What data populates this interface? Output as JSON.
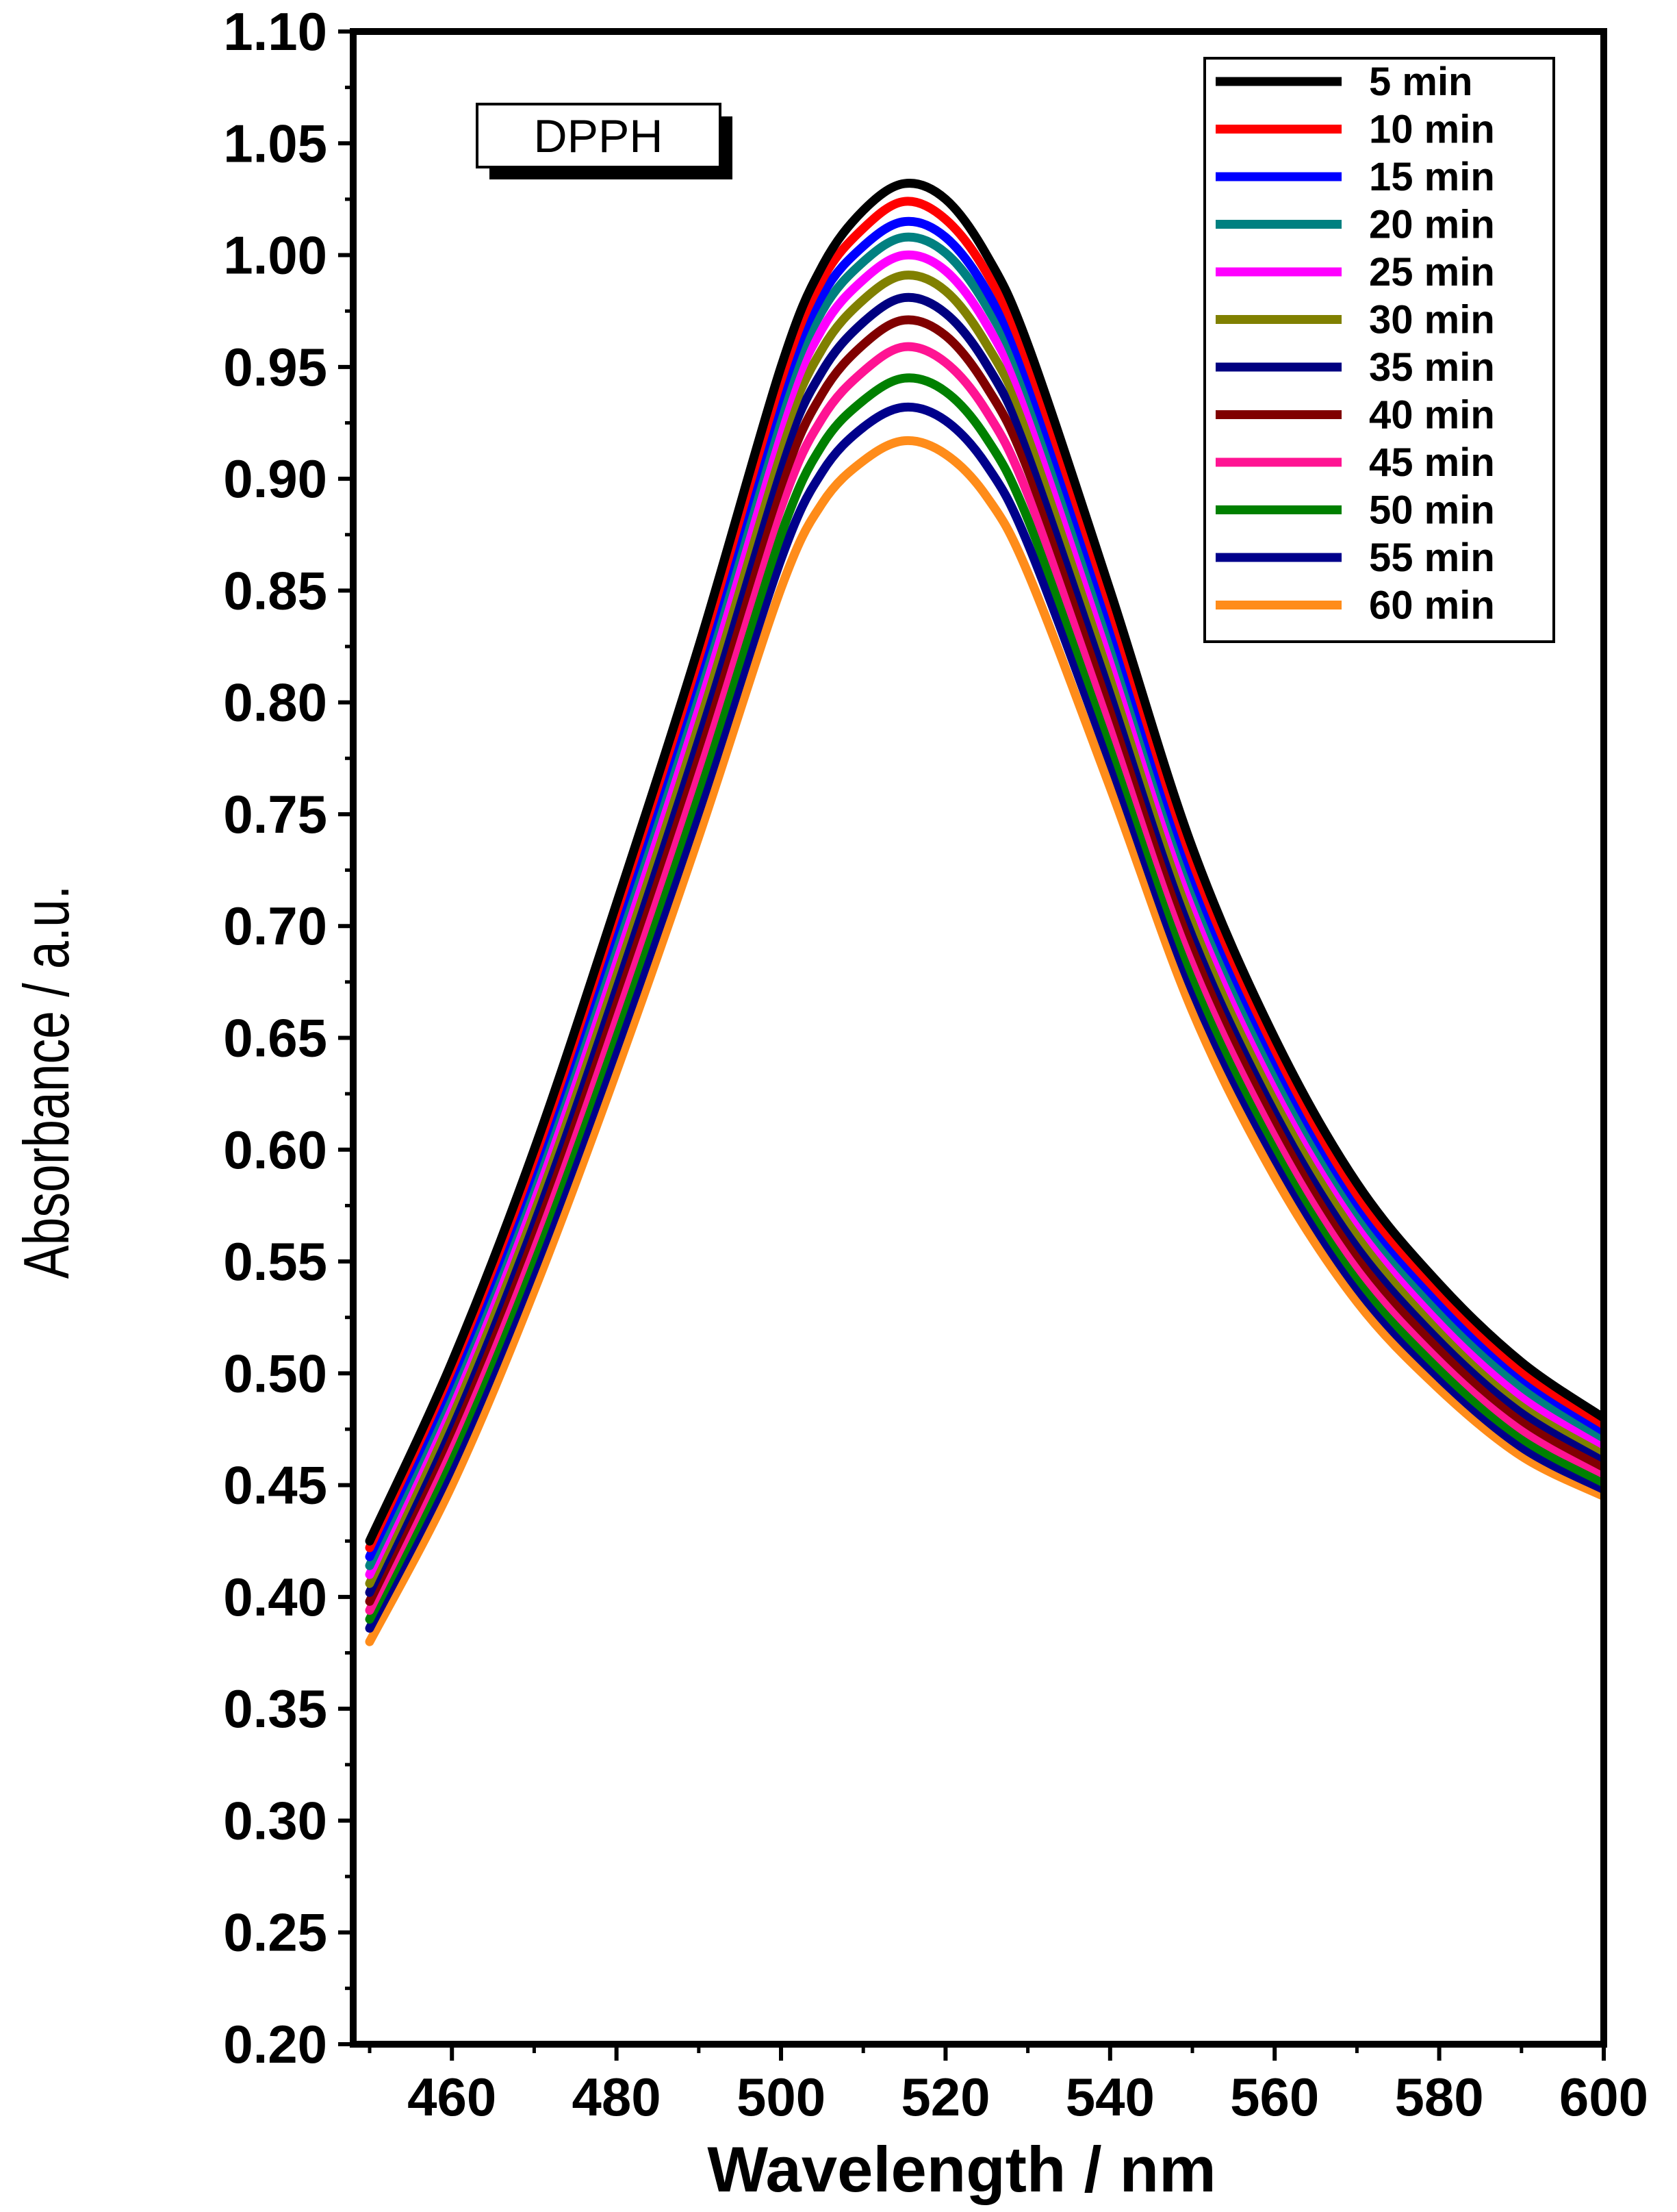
{
  "chart_data": {
    "type": "line",
    "title": "",
    "annotation": "DPPH",
    "xlabel": "Wavelength / nm",
    "ylabel": "Absorbance / a.u.",
    "xlim": [
      448,
      600
    ],
    "ylim": [
      0.2,
      1.1
    ],
    "x_ticks": [
      460,
      480,
      500,
      520,
      540,
      560,
      580,
      600
    ],
    "x_tick_labels": [
      "460",
      "480",
      "500",
      "520",
      "540",
      "560",
      "580",
      "600"
    ],
    "y_ticks": [
      0.2,
      0.25,
      0.3,
      0.35,
      0.4,
      0.45,
      0.5,
      0.55,
      0.6,
      0.65,
      0.7,
      0.75,
      0.8,
      0.85,
      0.9,
      0.95,
      1.0,
      1.05,
      1.1
    ],
    "y_tick_labels": [
      "0.20",
      "0.25",
      "0.30",
      "0.35",
      "0.40",
      "0.45",
      "0.50",
      "0.55",
      "0.60",
      "0.65",
      "0.70",
      "0.75",
      "0.80",
      "0.85",
      "0.90",
      "0.95",
      "1.00",
      "1.05",
      "1.10"
    ],
    "grid": false,
    "legend_position": "top-right",
    "x": [
      450,
      460,
      470,
      480,
      490,
      500,
      505,
      510,
      515,
      520,
      525,
      530,
      540,
      550,
      560,
      570,
      580,
      590,
      600
    ],
    "series": [
      {
        "name": "5 min",
        "color": "#000000",
        "values": [
          0.425,
          0.505,
          0.6,
          0.71,
          0.825,
          0.95,
          0.995,
          1.02,
          1.032,
          1.025,
          1.0,
          0.96,
          0.85,
          0.735,
          0.65,
          0.585,
          0.54,
          0.505,
          0.48
        ]
      },
      {
        "name": "10 min",
        "color": "#ff0000",
        "values": [
          0.422,
          0.502,
          0.596,
          0.706,
          0.82,
          0.944,
          0.989,
          1.012,
          1.024,
          1.016,
          0.992,
          0.952,
          0.843,
          0.729,
          0.645,
          0.58,
          0.536,
          0.501,
          0.477
        ]
      },
      {
        "name": "15 min",
        "color": "#0000ff",
        "values": [
          0.418,
          0.498,
          0.592,
          0.701,
          0.815,
          0.938,
          0.982,
          1.004,
          1.015,
          1.008,
          0.984,
          0.944,
          0.836,
          0.723,
          0.64,
          0.576,
          0.532,
          0.498,
          0.474
        ]
      },
      {
        "name": "20 min",
        "color": "#008080",
        "values": [
          0.414,
          0.494,
          0.588,
          0.696,
          0.81,
          0.932,
          0.975,
          0.997,
          1.008,
          1.001,
          0.977,
          0.938,
          0.83,
          0.718,
          0.635,
          0.572,
          0.528,
          0.494,
          0.471
        ]
      },
      {
        "name": "25 min",
        "color": "#ff00ff",
        "values": [
          0.41,
          0.49,
          0.583,
          0.69,
          0.803,
          0.924,
          0.967,
          0.989,
          1.0,
          0.993,
          0.969,
          0.93,
          0.823,
          0.712,
          0.63,
          0.568,
          0.524,
          0.49,
          0.468
        ]
      },
      {
        "name": "30 min",
        "color": "#808000",
        "values": [
          0.406,
          0.485,
          0.578,
          0.684,
          0.796,
          0.916,
          0.958,
          0.98,
          0.991,
          0.984,
          0.96,
          0.922,
          0.816,
          0.706,
          0.625,
          0.563,
          0.52,
          0.487,
          0.465
        ]
      },
      {
        "name": "35 min",
        "color": "#000080",
        "values": [
          0.402,
          0.48,
          0.572,
          0.677,
          0.788,
          0.907,
          0.948,
          0.97,
          0.981,
          0.974,
          0.951,
          0.913,
          0.808,
          0.7,
          0.62,
          0.558,
          0.516,
          0.483,
          0.462
        ]
      },
      {
        "name": "40 min",
        "color": "#800000",
        "values": [
          0.398,
          0.475,
          0.566,
          0.67,
          0.78,
          0.897,
          0.938,
          0.96,
          0.971,
          0.964,
          0.941,
          0.904,
          0.8,
          0.693,
          0.614,
          0.553,
          0.511,
          0.479,
          0.458
        ]
      },
      {
        "name": "45 min",
        "color": "#ff1493",
        "values": [
          0.394,
          0.47,
          0.56,
          0.662,
          0.771,
          0.887,
          0.927,
          0.948,
          0.959,
          0.952,
          0.93,
          0.893,
          0.791,
          0.686,
          0.608,
          0.548,
          0.507,
          0.475,
          0.455
        ]
      },
      {
        "name": "50 min",
        "color": "#008000",
        "values": [
          0.39,
          0.464,
          0.553,
          0.654,
          0.761,
          0.875,
          0.915,
          0.935,
          0.945,
          0.939,
          0.918,
          0.882,
          0.782,
          0.678,
          0.602,
          0.543,
          0.502,
          0.471,
          0.451
        ]
      },
      {
        "name": "55 min",
        "color": "#00008b",
        "values": [
          0.386,
          0.458,
          0.546,
          0.645,
          0.751,
          0.864,
          0.903,
          0.923,
          0.932,
          0.926,
          0.906,
          0.871,
          0.773,
          0.671,
          0.596,
          0.538,
          0.498,
          0.467,
          0.448
        ]
      },
      {
        "name": "60 min",
        "color": "#ff8c1a",
        "values": [
          0.38,
          0.45,
          0.537,
          0.635,
          0.74,
          0.851,
          0.889,
          0.908,
          0.917,
          0.911,
          0.892,
          0.858,
          0.762,
          0.662,
          0.588,
          0.532,
          0.493,
          0.463,
          0.445
        ]
      }
    ]
  }
}
